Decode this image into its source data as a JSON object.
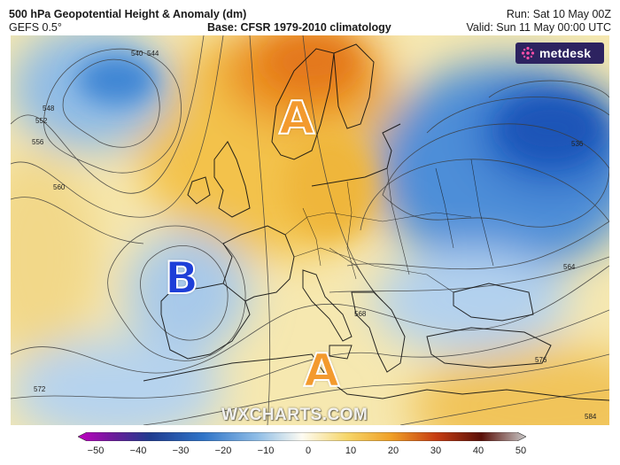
{
  "header": {
    "title": "500 hPa Geopotential Height & Anomaly (dm)",
    "model": "GEFS 0.5°",
    "base": "Base: CFSR 1979-2010 climatology",
    "run": "Run: Sat 10 May 00Z",
    "valid": "Valid: Sun 11 May 00:00 UTC"
  },
  "logo": {
    "text": "metdesk",
    "icon": "metdesk-star-icon",
    "color": "#2d2360"
  },
  "watermark": "WXCHARTS.COM",
  "pressure_labels": [
    {
      "label": "A",
      "type": "high"
    },
    {
      "label": "B",
      "type": "low"
    },
    {
      "label": "A",
      "type": "high"
    }
  ],
  "contour_labels": [
    "536",
    "540",
    "544",
    "548",
    "552",
    "556",
    "560",
    "564",
    "568",
    "572",
    "576",
    "584"
  ],
  "colorbar": {
    "ticks": [
      "−50",
      "−40",
      "−30",
      "−20",
      "−10",
      "0",
      "10",
      "20",
      "30",
      "40",
      "50"
    ],
    "colors": [
      "#8b008b",
      "#1f3b8f",
      "#2f74c8",
      "#7bb0e0",
      "#d5e6f4",
      "#fbf3cc",
      "#f6cc4e",
      "#e97d1a",
      "#c63c12",
      "#6e1208",
      "#a8a8a8"
    ]
  }
}
